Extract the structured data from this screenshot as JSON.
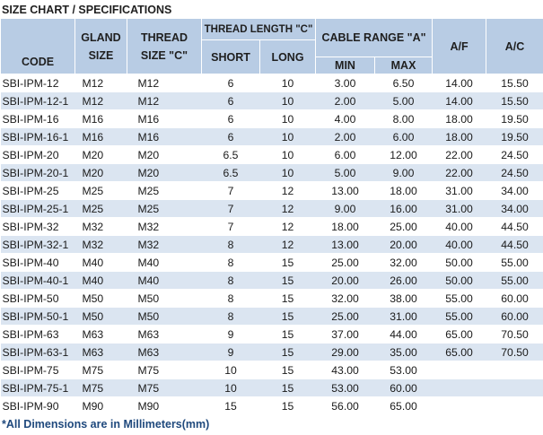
{
  "title": "SIZE CHART / SPECIFICATIONS",
  "headers": {
    "code": "CODE",
    "gland_size": [
      "GLAND",
      "SIZE"
    ],
    "thread_size": [
      "THREAD",
      "SIZE \"C\""
    ],
    "thread_length": "THREAD LENGTH \"C\"",
    "short": "SHORT",
    "long": "LONG",
    "cable_range": "CABLE RANGE \"A\"",
    "min": "MIN",
    "max": "MAX",
    "af": "A/F",
    "ac": "A/C"
  },
  "rows": [
    [
      "SBI-IPM-12",
      "M12",
      "M12",
      "6",
      "10",
      "3.00",
      "6.50",
      "14.00",
      "15.50"
    ],
    [
      "SBI-IPM-12-1",
      "M12",
      "M12",
      "6",
      "10",
      "2.00",
      "5.00",
      "14.00",
      "15.50"
    ],
    [
      "SBI-IPM-16",
      "M16",
      "M16",
      "6",
      "10",
      "4.00",
      "8.00",
      "18.00",
      "19.50"
    ],
    [
      "SBI-IPM-16-1",
      "M16",
      "M16",
      "6",
      "10",
      "2.00",
      "6.00",
      "18.00",
      "19.50"
    ],
    [
      "SBI-IPM-20",
      "M20",
      "M20",
      "6.5",
      "10",
      "6.00",
      "12.00",
      "22.00",
      "24.50"
    ],
    [
      "SBI-IPM-20-1",
      "M20",
      "M20",
      "6.5",
      "10",
      "5.00",
      "9.00",
      "22.00",
      "24.50"
    ],
    [
      "SBI-IPM-25",
      "M25",
      "M25",
      "7",
      "12",
      "13.00",
      "18.00",
      "31.00",
      "34.00"
    ],
    [
      "SBI-IPM-25-1",
      "M25",
      "M25",
      "7",
      "12",
      "9.00",
      "16.00",
      "31.00",
      "34.00"
    ],
    [
      "SBI-IPM-32",
      "M32",
      "M32",
      "7",
      "12",
      "18.00",
      "25.00",
      "40.00",
      "44.50"
    ],
    [
      "SBI-IPM-32-1",
      "M32",
      "M32",
      "8",
      "12",
      "13.00",
      "20.00",
      "40.00",
      "44.50"
    ],
    [
      "SBI-IPM-40",
      "M40",
      "M40",
      "8",
      "15",
      "25.00",
      "32.00",
      "50.00",
      "55.00"
    ],
    [
      "SBI-IPM-40-1",
      "M40",
      "M40",
      "8",
      "15",
      "20.00",
      "26.00",
      "50.00",
      "55.00"
    ],
    [
      "SBI-IPM-50",
      "M50",
      "M50",
      "8",
      "15",
      "32.00",
      "38.00",
      "55.00",
      "60.00"
    ],
    [
      "SBI-IPM-50-1",
      "M50",
      "M50",
      "8",
      "15",
      "25.00",
      "31.00",
      "55.00",
      "60.00"
    ],
    [
      "SBI-IPM-63",
      "M63",
      "M63",
      "9",
      "15",
      "37.00",
      "44.00",
      "65.00",
      "70.50"
    ],
    [
      "SBI-IPM-63-1",
      "M63",
      "M63",
      "9",
      "15",
      "29.00",
      "35.00",
      "65.00",
      "70.50"
    ],
    [
      "SBI-IPM-75",
      "M75",
      "M75",
      "10",
      "15",
      "43.00",
      "53.00",
      "",
      ""
    ],
    [
      "SBI-IPM-75-1",
      "M75",
      "M75",
      "10",
      "15",
      "53.00",
      "60.00",
      "",
      ""
    ],
    [
      "SBI-IPM-90",
      "M90",
      "M90",
      "15",
      "15",
      "56.00",
      "65.00",
      "",
      ""
    ]
  ],
  "footnote": "*All Dimensions are in Millimeters(mm)",
  "colors": {
    "header_bg": "#b8cce4",
    "stripe_bg": "#dbe5f1",
    "footnote": "#1f497d"
  }
}
